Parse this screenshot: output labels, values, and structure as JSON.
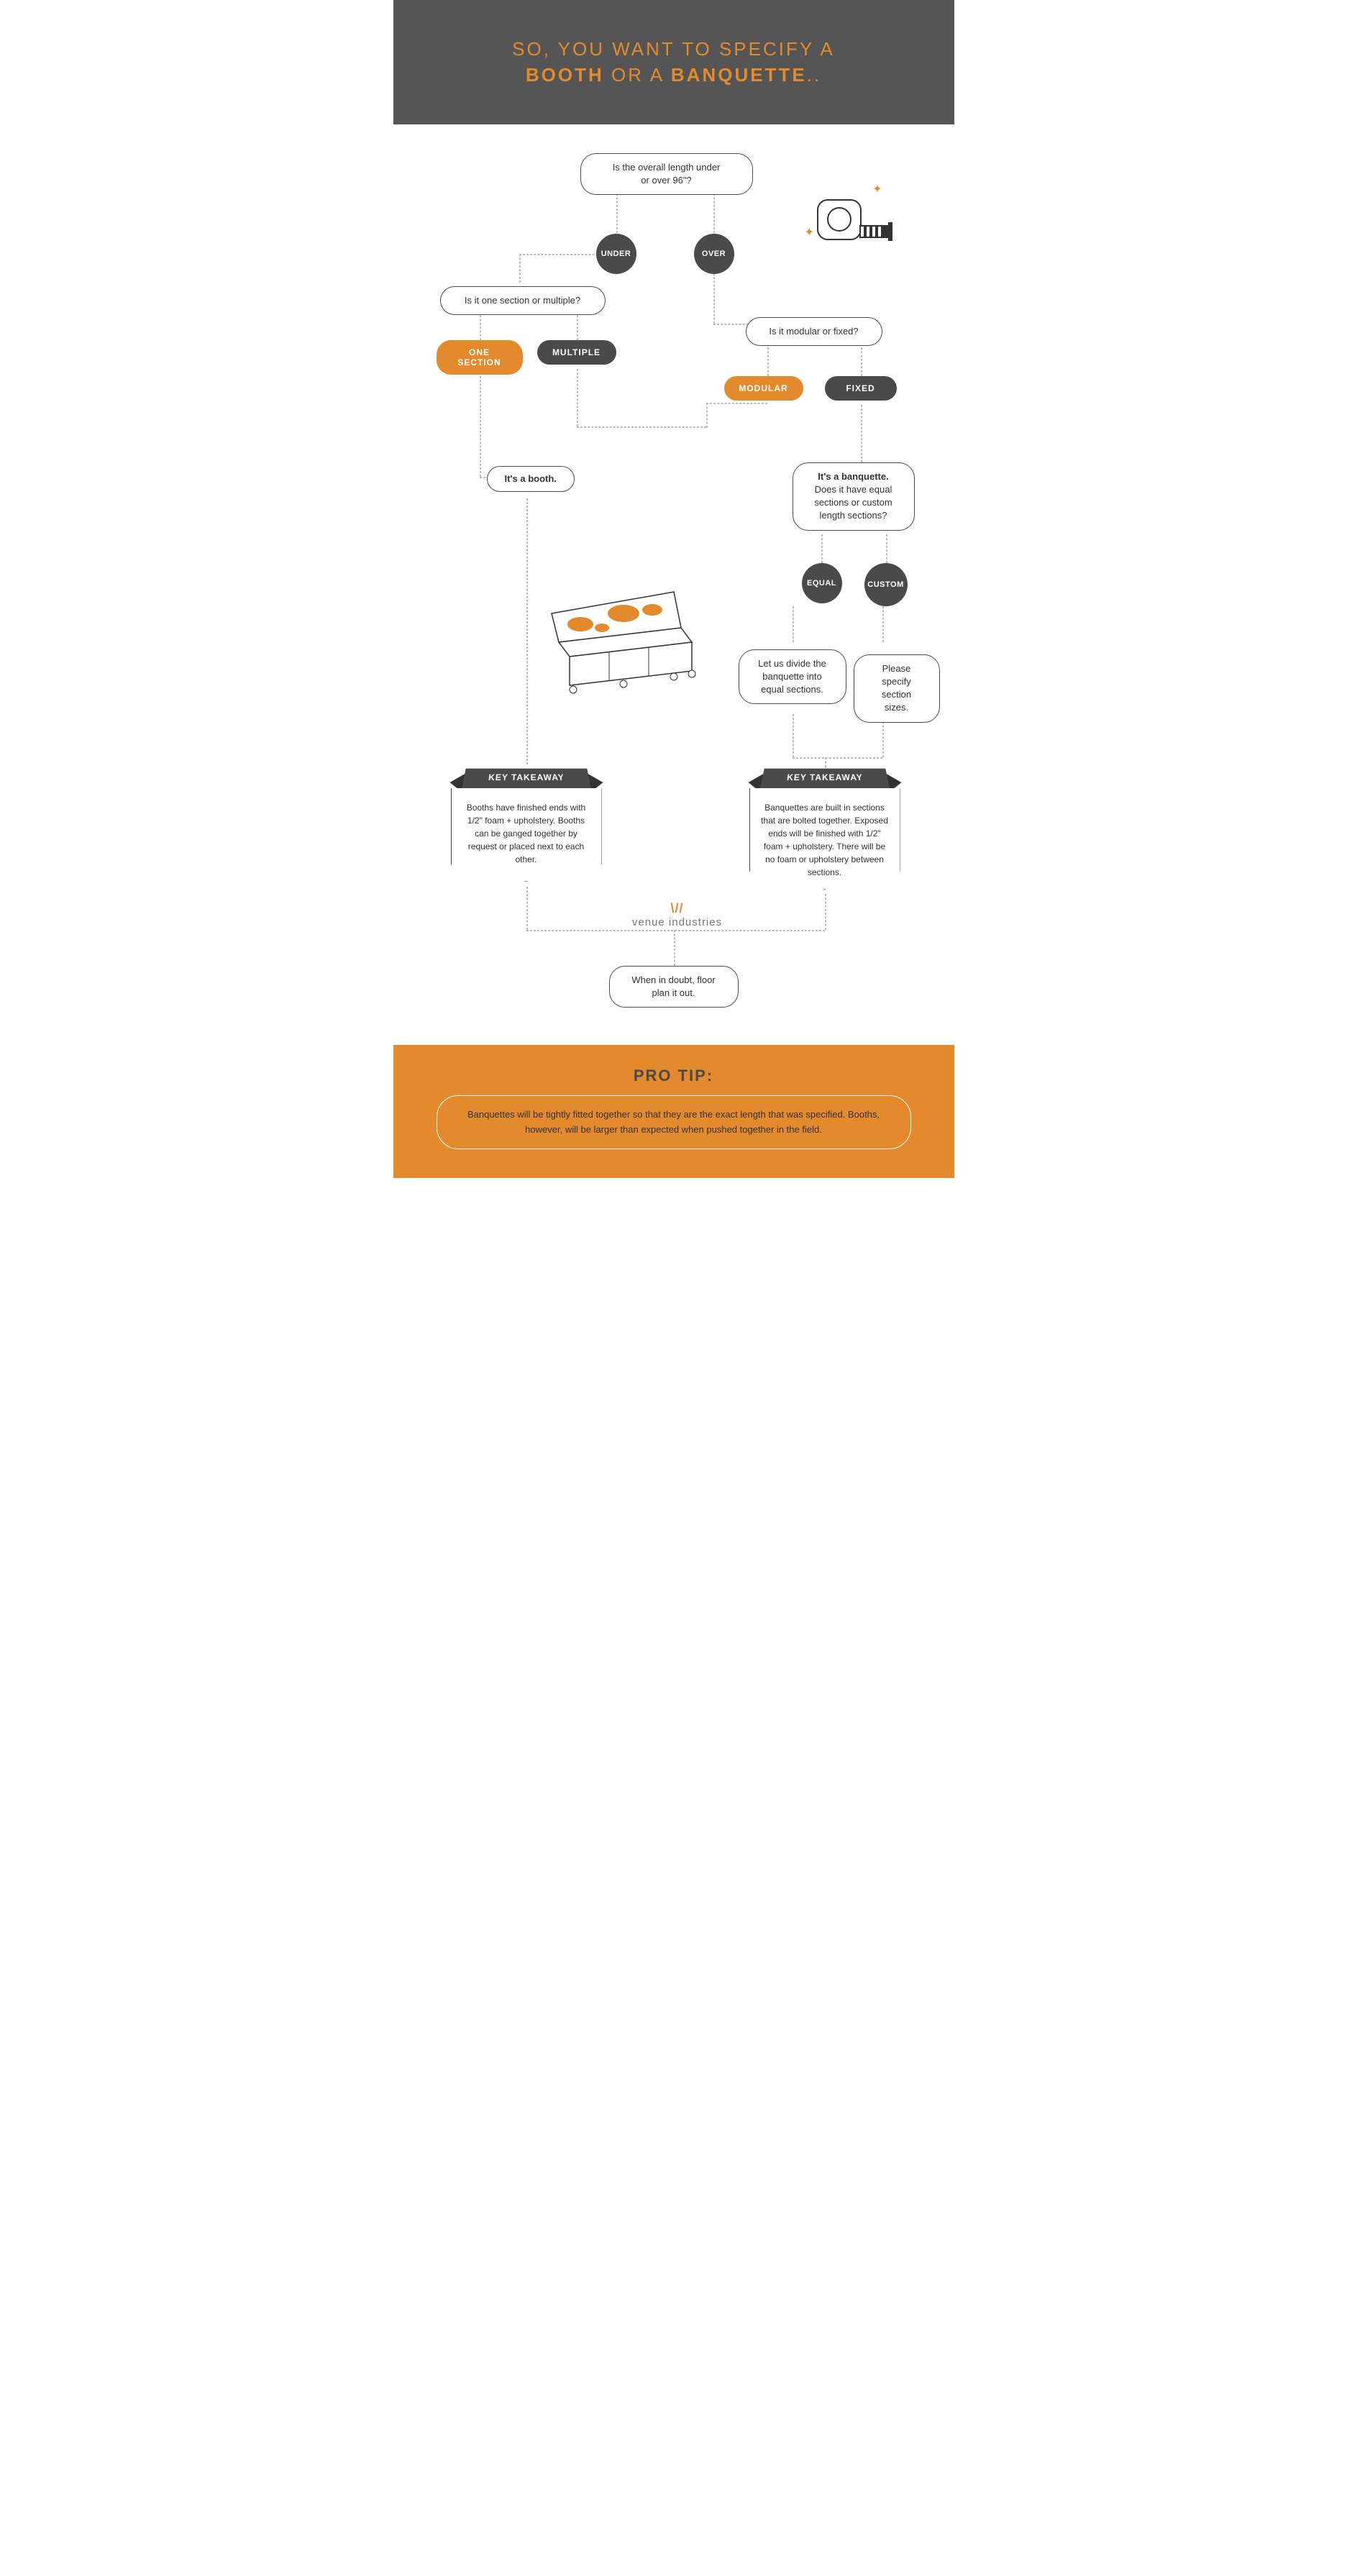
{
  "colors": {
    "orange": "#e38a2c",
    "darkgray": "#4a4a4a",
    "headerbg": "#555555",
    "dash": "#bbbbbb",
    "white": "#ffffff"
  },
  "header": {
    "line1_pre": "SO, YOU WANT TO SPECIFY A",
    "booth": "BOOTH",
    "or": " OR A ",
    "banquette": "BANQUETTE",
    "tail": ".."
  },
  "flow": {
    "q_length": "Is the overall length under\nor over 96\"?",
    "under": "UNDER",
    "over": "OVER",
    "q_sections": "Is it one section or multiple?",
    "one_section": "ONE SECTION",
    "multiple": "MULTIPLE",
    "q_modular": "Is it modular or fixed?",
    "modular": "MODULAR",
    "fixed": "FIXED",
    "its_a_booth": "It's a booth.",
    "its_a_banquette_q": "It's a banquette.\nDoes it have equal sections or custom length sections?",
    "banquette_bold": "It's a banquette.",
    "banquette_rest": "Does it have equal sections or custom length sections?",
    "equal": "EQUAL",
    "custom": "CUSTOM",
    "let_us_divide": "Let us divide the banquette into equal sections.",
    "please_specify": "Please specify section sizes.",
    "when_in_doubt": "When in doubt, floor plan it out."
  },
  "takeaways": {
    "label": "KEY TAKEAWAY",
    "booth": "Booths have finished ends with 1/2\" foam + upholstery. Booths can be ganged together by request or placed next to each other.",
    "banquette": "Banquettes are built in sections that are bolted together. Exposed ends will be finished with 1/2\" foam + upholstery. There will be no foam or upholstery between sections."
  },
  "logo": {
    "mark": "\\//",
    "text": "venue industries"
  },
  "footer": {
    "title": "PRO TIP:",
    "body": "Banquettes will be tightly fitted together so that they are the exact length that was specified. Booths, however, will be larger than expected when pushed together in the field."
  }
}
